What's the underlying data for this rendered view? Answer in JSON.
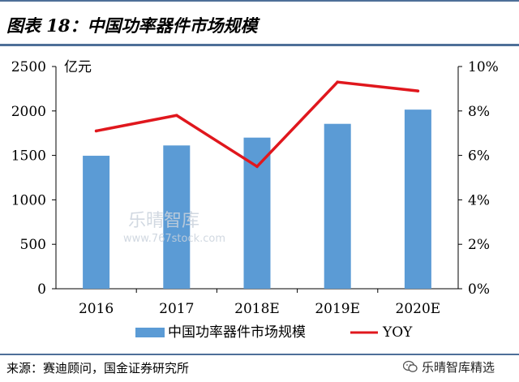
{
  "header": {
    "title": "图表 18：中国功率器件市场规模"
  },
  "footer": {
    "source": "来源：赛迪顾问，国金证券研究所",
    "brand": "乐晴智库精选"
  },
  "watermark": {
    "cn": "乐晴智库",
    "url": "www.767stock.com"
  },
  "chart_data": {
    "type": "bar",
    "categories": [
      "2016",
      "2017",
      "2018E",
      "2019E",
      "2020E"
    ],
    "series": [
      {
        "name": "中国功率器件市场规模",
        "type": "bar",
        "axis": "left",
        "color": "#5b9bd5",
        "values": [
          1496,
          1612,
          1700,
          1855,
          2015
        ]
      },
      {
        "name": "YOY",
        "type": "line",
        "axis": "right",
        "color": "#e0171d",
        "values": [
          0.071,
          0.078,
          0.055,
          0.093,
          0.089
        ]
      }
    ],
    "left_axis": {
      "unit": "亿元",
      "ylim": [
        0,
        2500
      ],
      "ticks": [
        "0",
        "500",
        "1000",
        "1500",
        "2000",
        "2500"
      ]
    },
    "right_axis": {
      "ylim": [
        0,
        0.1
      ],
      "ticks": [
        "0%",
        "2%",
        "4%",
        "6%",
        "8%",
        "10%"
      ]
    },
    "grid": false,
    "legend": "bottom"
  }
}
